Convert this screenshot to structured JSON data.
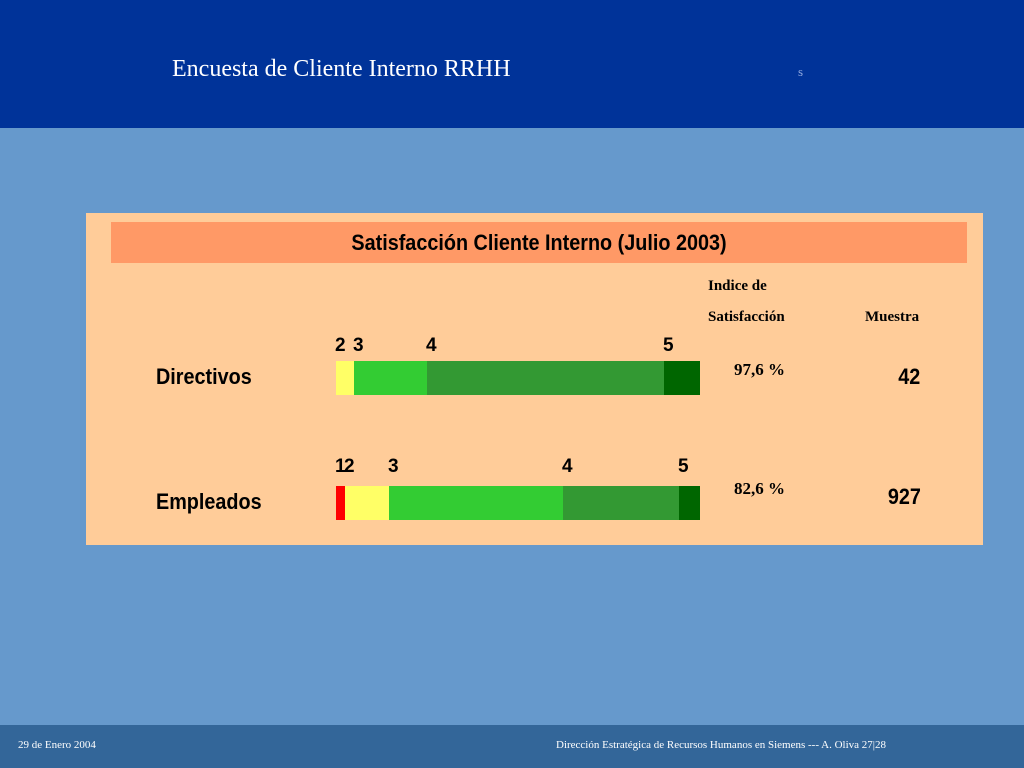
{
  "header": {
    "title": "Encuesta de Cliente Interno RRHH",
    "mark": "s"
  },
  "colors": {
    "header": "#003399",
    "background": "#6699cc",
    "panel": "#ffcc99",
    "title_bar": "#ff9966",
    "footer": "#336699"
  },
  "chart_data": {
    "type": "bar",
    "orientation": "horizontal",
    "stacked": true,
    "title": "Satisfacción Cliente Interno (Julio 2003)",
    "column_headers": {
      "index_line1": "Indice de",
      "index_line2": "Satisfacción",
      "sample": "Muestra"
    },
    "scale_colors": {
      "1": "#ff0000",
      "2": "#ffff66",
      "3": "#33cc33",
      "4": "#339933",
      "5": "#006600"
    },
    "rows": [
      {
        "name": "Directivos",
        "index": "97,6 %",
        "sample": "42",
        "segments": [
          {
            "score": "2",
            "value": 4.9
          },
          {
            "score": "3",
            "value": 20.1
          },
          {
            "score": "4",
            "value": 65.2
          },
          {
            "score": "5",
            "value": 9.8
          }
        ]
      },
      {
        "name": "Empleados",
        "index": "82,6 %",
        "sample": "927",
        "segments": [
          {
            "score": "1",
            "value": 2.5
          },
          {
            "score": "2",
            "value": 12.1
          },
          {
            "score": "3",
            "value": 47.8
          },
          {
            "score": "4",
            "value": 31.9
          },
          {
            "score": "5",
            "value": 5.7
          }
        ]
      }
    ],
    "xlim": [
      0,
      100
    ]
  },
  "footer": {
    "date": "29 de Enero 2004",
    "credit": "Dirección Estratégica de Recursos Humanos en Siemens ---   A. Oliva   27|28"
  }
}
